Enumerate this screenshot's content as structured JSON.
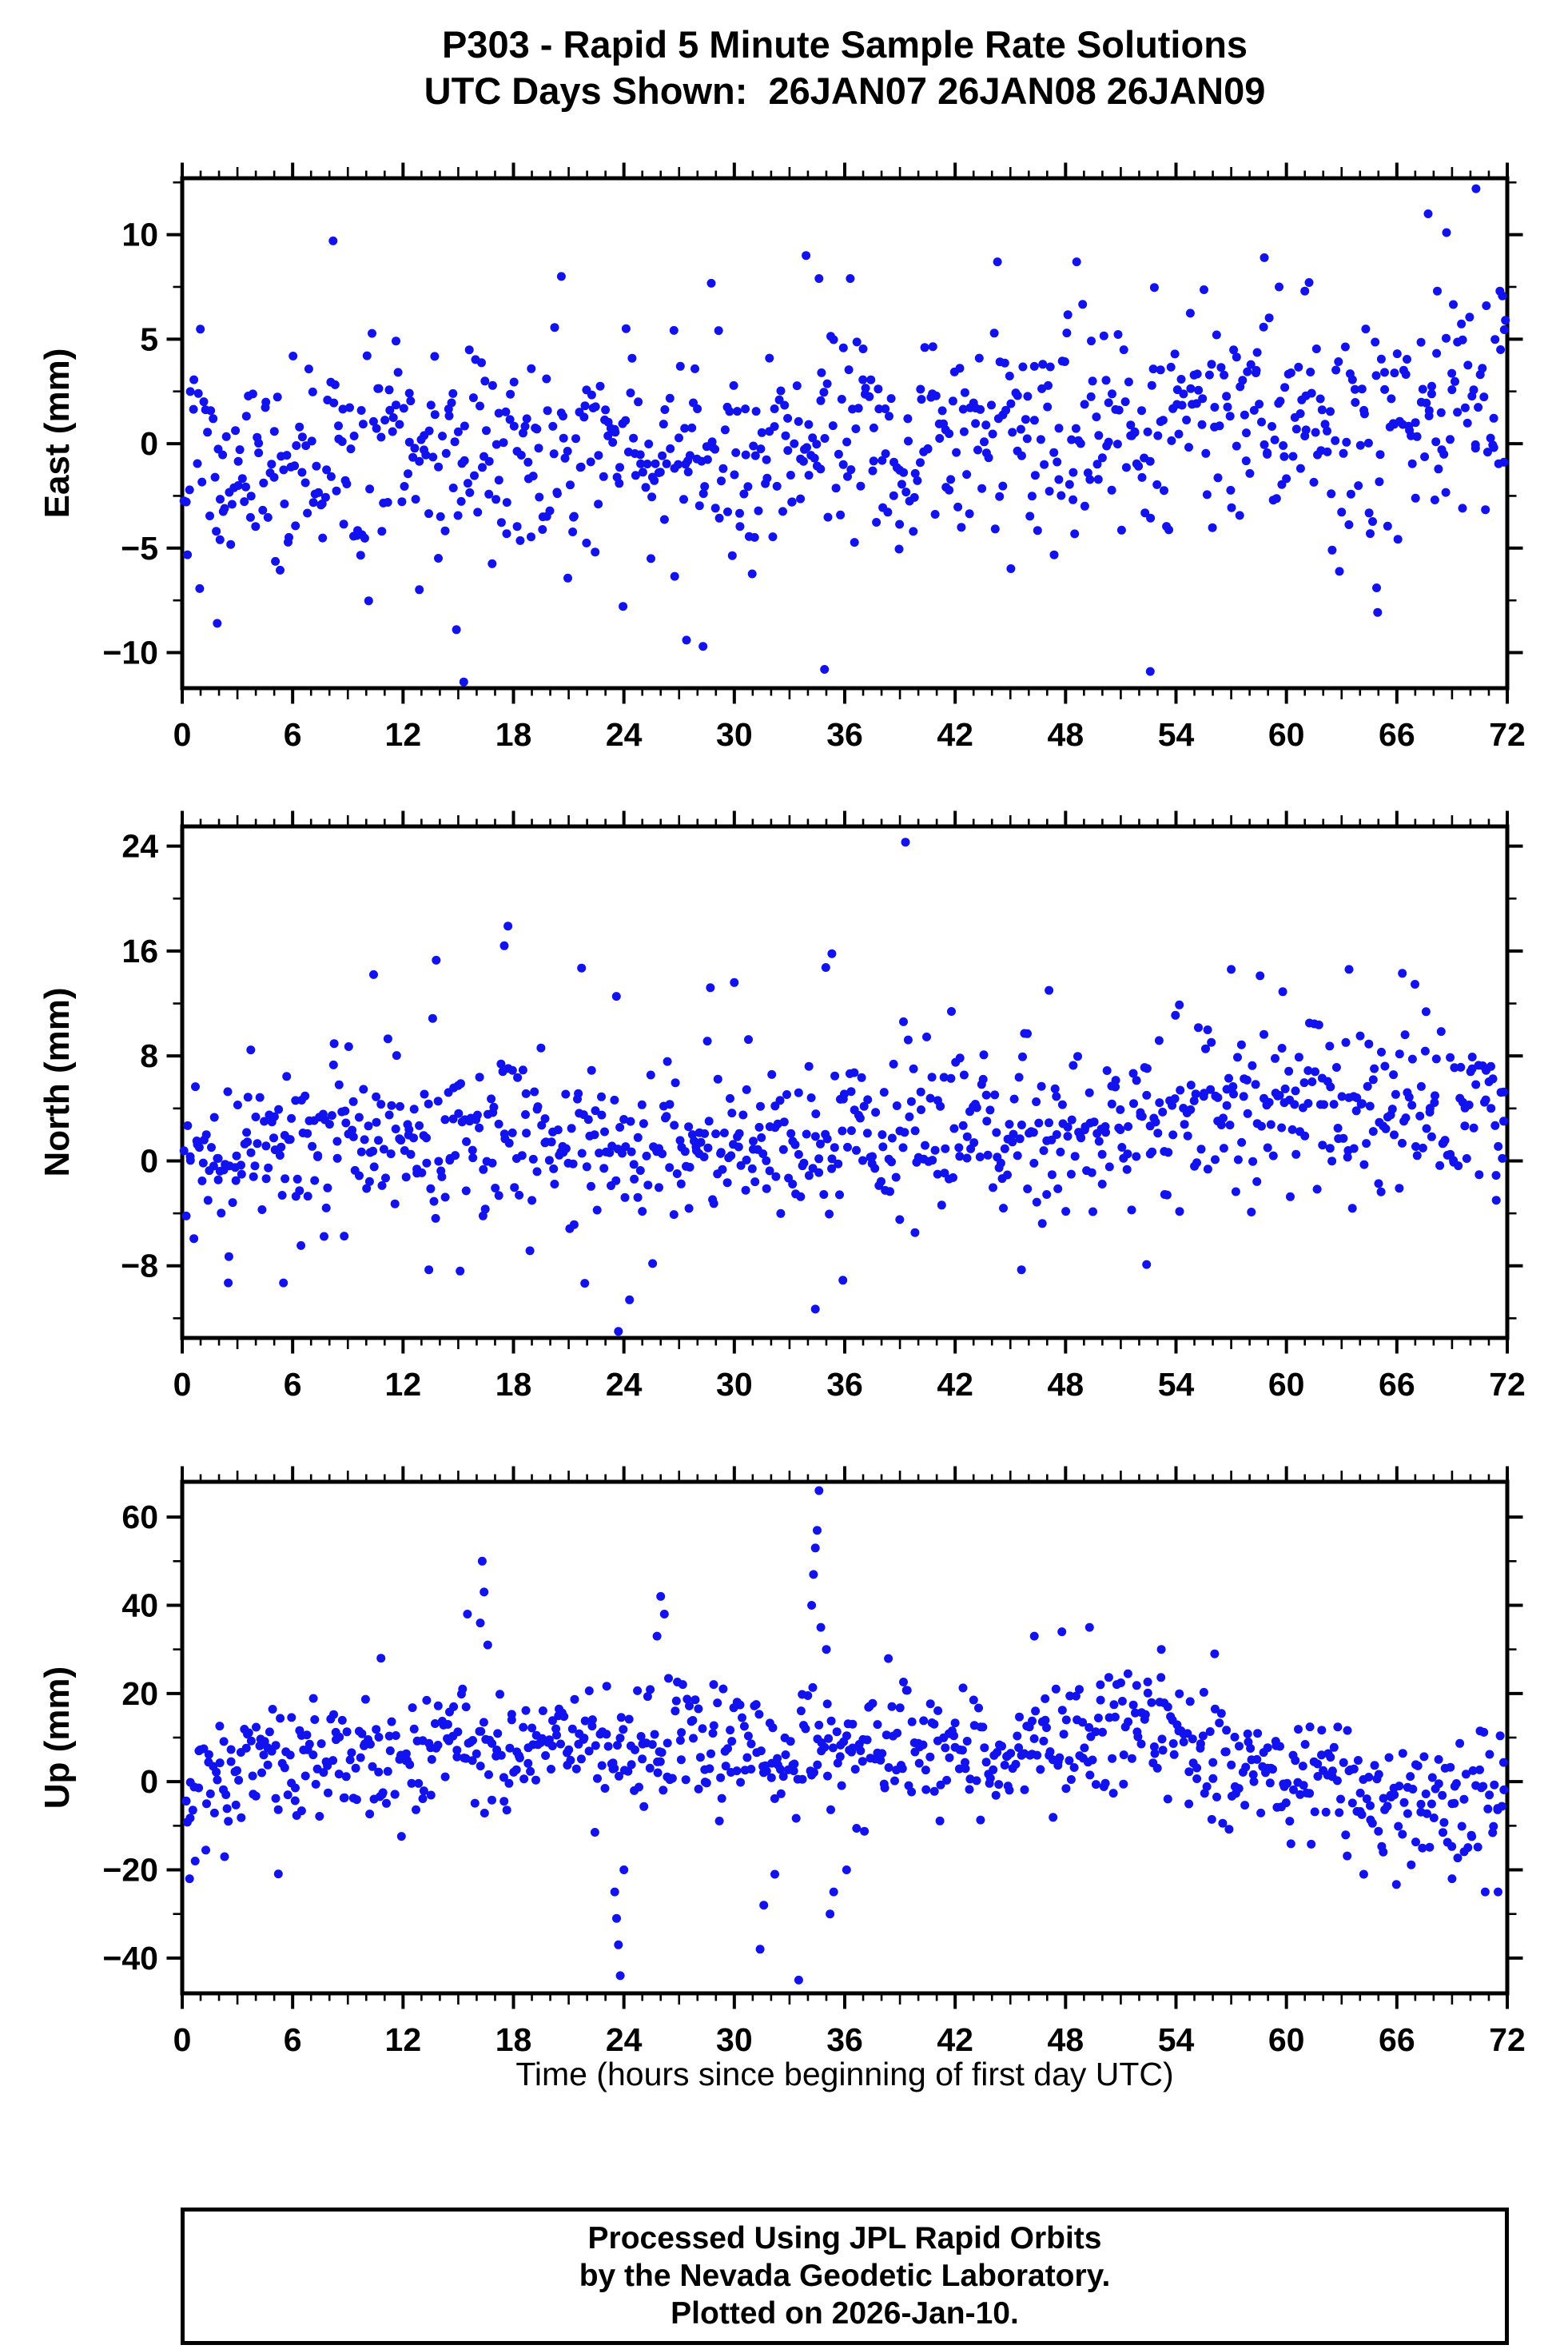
{
  "header": {
    "title_line1": "P303 - Rapid 5 Minute Sample Rate Solutions",
    "title_line2": "UTC Days Shown:  26JAN07 26JAN08 26JAN09"
  },
  "station": "P303",
  "days_shown": [
    "26JAN07",
    "26JAN08",
    "26JAN09"
  ],
  "xaxis": {
    "title": "Time (hours since beginning of first day UTC)",
    "min": 0,
    "max": 72,
    "major_step": 6,
    "medium_step": 3,
    "minor_step": 1,
    "tick_labels": [
      0,
      6,
      12,
      18,
      24,
      30,
      36,
      42,
      48,
      54,
      60,
      66,
      72
    ]
  },
  "style": {
    "marker_color": "#1212ee",
    "marker_radius": 5.5,
    "frame_color": "#000000",
    "background": "#ffffff"
  },
  "chart_data": {
    "type": "scatter",
    "title": "P303 - Rapid 5 Minute Sample Rate Solutions",
    "x_unit": "hours since beginning of first day UTC",
    "sample_rate": "5 minute",
    "legend": "none",
    "grid": "off",
    "panels": [
      {
        "id": "east",
        "ylabel": "East (mm)",
        "ylim": [
          -11.7,
          12.7
        ],
        "yticks": [
          -10,
          -5,
          0,
          5,
          10
        ],
        "ytick_major_step": 5,
        "ytick_minor_step": 2.5,
        "n_points": 810,
        "seed": 101,
        "sigma": 2.6,
        "tail_frac": 0.06,
        "tail_sigma": 2.2,
        "trend": [
          [
            0,
            -0.9
          ],
          [
            6,
            -0.7
          ],
          [
            12,
            -0.4
          ],
          [
            18,
            -0.4
          ],
          [
            24,
            -0.6
          ],
          [
            30,
            -0.4
          ],
          [
            36,
            0.1
          ],
          [
            42,
            0.0
          ],
          [
            48,
            0.4
          ],
          [
            54,
            1.1
          ],
          [
            60,
            1.4
          ],
          [
            66,
            1.0
          ],
          [
            72,
            1.6
          ]
        ],
        "outliers": [
          [
            8.2,
            9.7
          ],
          [
            15.3,
            -11.4
          ],
          [
            1.9,
            -8.6
          ],
          [
            14.9,
            -8.9
          ],
          [
            20.6,
            8.0
          ],
          [
            33.9,
            9.0
          ],
          [
            34.6,
            7.9
          ],
          [
            27.4,
            -9.4
          ],
          [
            28.3,
            -9.7
          ],
          [
            34.9,
            -10.8
          ],
          [
            36.3,
            7.9
          ],
          [
            44.3,
            8.7
          ],
          [
            48.6,
            8.7
          ],
          [
            52.6,
            -10.9
          ],
          [
            58.8,
            8.9
          ],
          [
            59.6,
            7.5
          ],
          [
            61.0,
            7.3
          ],
          [
            64.9,
            -6.9
          ],
          [
            67.7,
            11.0
          ],
          [
            68.7,
            10.1
          ],
          [
            70.3,
            12.2
          ],
          [
            68.2,
            7.3
          ],
          [
            71.6,
            7.3
          ],
          [
            71.9,
            5.9
          ]
        ]
      },
      {
        "id": "north",
        "ylabel": "North (mm)",
        "ylim": [
          -13.5,
          25.5
        ],
        "yticks": [
          -8,
          0,
          8,
          16,
          24
        ],
        "ytick_major_step": 8,
        "ytick_minor_step": 4,
        "n_points": 810,
        "seed": 202,
        "sigma": 3.1,
        "tail_frac": 0.07,
        "tail_sigma": 2.8,
        "trend": [
          [
            0,
            0.6
          ],
          [
            6,
            1.2
          ],
          [
            12,
            2.2
          ],
          [
            18,
            2.6
          ],
          [
            24,
            0.9
          ],
          [
            30,
            1.4
          ],
          [
            36,
            1.8
          ],
          [
            42,
            2.8
          ],
          [
            48,
            3.2
          ],
          [
            54,
            3.4
          ],
          [
            60,
            3.8
          ],
          [
            66,
            4.2
          ],
          [
            72,
            3.6
          ]
        ],
        "outliers": [
          [
            39.3,
            24.3
          ],
          [
            17.7,
            17.9
          ],
          [
            17.5,
            16.4
          ],
          [
            13.8,
            15.3
          ],
          [
            10.4,
            14.2
          ],
          [
            21.7,
            14.7
          ],
          [
            30.0,
            13.6
          ],
          [
            35.3,
            15.8
          ],
          [
            28.7,
            13.2
          ],
          [
            47.1,
            13.0
          ],
          [
            57.0,
            14.6
          ],
          [
            63.4,
            14.6
          ],
          [
            66.3,
            14.3
          ],
          [
            59.8,
            12.9
          ],
          [
            23.7,
            -13.0
          ],
          [
            34.4,
            -11.3
          ],
          [
            2.5,
            -9.3
          ],
          [
            5.5,
            -9.3
          ],
          [
            15.1,
            -8.4
          ],
          [
            13.4,
            -8.3
          ],
          [
            35.9,
            -9.1
          ],
          [
            45.6,
            -8.3
          ],
          [
            52.4,
            -7.9
          ],
          [
            71.4,
            -3.0
          ]
        ]
      },
      {
        "id": "up",
        "ylabel": "Up (mm)",
        "ylim": [
          -48,
          68
        ],
        "yticks": [
          -40,
          -20,
          0,
          20,
          40,
          60
        ],
        "ytick_major_step": 20,
        "ytick_minor_step": 10,
        "n_points": 810,
        "seed": 303,
        "sigma": 7.0,
        "tail_frac": 0.06,
        "tail_sigma": 8,
        "trend": [
          [
            0,
            -2
          ],
          [
            3,
            2
          ],
          [
            6,
            4
          ],
          [
            9,
            7
          ],
          [
            12,
            5
          ],
          [
            15,
            8
          ],
          [
            18,
            7
          ],
          [
            21,
            8
          ],
          [
            24,
            7
          ],
          [
            27,
            10
          ],
          [
            30,
            7
          ],
          [
            33,
            3
          ],
          [
            36,
            6
          ],
          [
            39,
            9
          ],
          [
            42,
            7
          ],
          [
            45,
            6
          ],
          [
            48,
            7
          ],
          [
            51,
            13
          ],
          [
            54,
            11
          ],
          [
            57,
            4
          ],
          [
            60,
            0
          ],
          [
            63,
            1
          ],
          [
            66,
            -3
          ],
          [
            69,
            -5
          ],
          [
            72,
            -6
          ]
        ],
        "outliers": [
          [
            16.3,
            50
          ],
          [
            16.4,
            43
          ],
          [
            16.2,
            36
          ],
          [
            16.6,
            31
          ],
          [
            15.5,
            38
          ],
          [
            23.5,
            -25
          ],
          [
            23.6,
            -31
          ],
          [
            23.7,
            -37
          ],
          [
            23.8,
            -44
          ],
          [
            24.0,
            -20
          ],
          [
            26.0,
            42
          ],
          [
            26.2,
            38
          ],
          [
            25.8,
            33
          ],
          [
            31.4,
            -38
          ],
          [
            31.6,
            -28
          ],
          [
            32.2,
            -21
          ],
          [
            33.5,
            -45
          ],
          [
            34.2,
            40
          ],
          [
            34.3,
            47
          ],
          [
            34.4,
            53
          ],
          [
            34.5,
            57
          ],
          [
            34.6,
            66
          ],
          [
            34.7,
            35
          ],
          [
            35.0,
            30
          ],
          [
            35.2,
            -30
          ],
          [
            35.4,
            -25
          ],
          [
            36.1,
            -20
          ],
          [
            46.3,
            33
          ],
          [
            47.8,
            34
          ],
          [
            49.3,
            35
          ],
          [
            53.2,
            30
          ],
          [
            56.1,
            29
          ],
          [
            0.4,
            -22
          ],
          [
            2.3,
            -17
          ],
          [
            10.8,
            28
          ],
          [
            64.2,
            -21
          ],
          [
            69.0,
            -22
          ],
          [
            70.8,
            -25
          ],
          [
            71.5,
            -25
          ]
        ]
      }
    ]
  },
  "footer": {
    "line1": "Processed Using JPL Rapid Orbits",
    "line2": "by the Nevada Geodetic Laboratory.",
    "line3": "Plotted on 2026-Jan-10."
  }
}
